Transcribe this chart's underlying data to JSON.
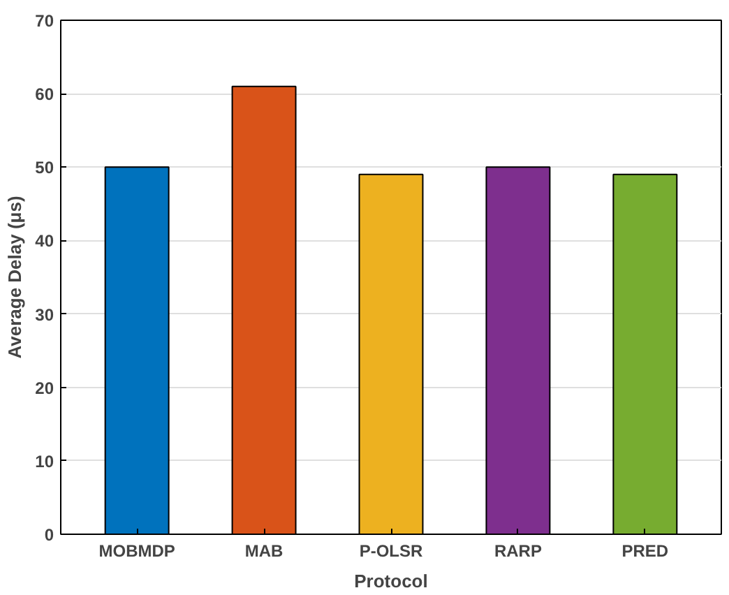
{
  "chart_data": {
    "type": "bar",
    "xlabel": "Protocol",
    "ylabel": "Average Delay (μs)",
    "categories": [
      "MOBMDP",
      "MAB",
      "P-OLSR",
      "RARP",
      "PRED"
    ],
    "values": [
      50,
      61,
      49,
      50,
      49
    ],
    "colors": [
      "#0072bd",
      "#d95319",
      "#edb120",
      "#7e2f8e",
      "#77ac30"
    ],
    "ylim": [
      0,
      70
    ],
    "yticks": [
      0,
      10,
      20,
      30,
      40,
      50,
      60,
      70
    ],
    "grid": "y"
  }
}
